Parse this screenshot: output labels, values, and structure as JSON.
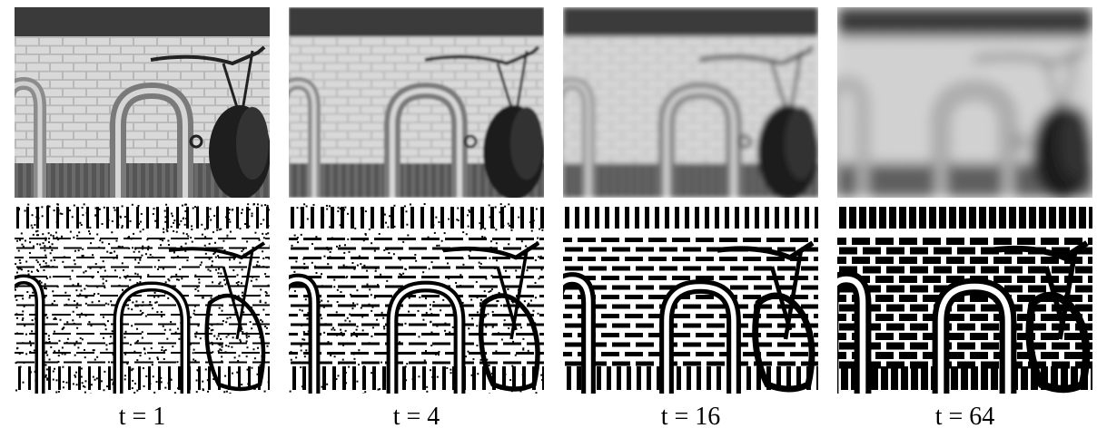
{
  "figure": {
    "panels": [
      {
        "caption": "t = 1",
        "blur": 0,
        "scale": 1
      },
      {
        "caption": "t = 4",
        "blur": 1.2,
        "scale": 4
      },
      {
        "caption": "t = 16",
        "blur": 3,
        "scale": 16
      },
      {
        "caption": "t = 64",
        "blur": 7,
        "scale": 64
      }
    ]
  }
}
